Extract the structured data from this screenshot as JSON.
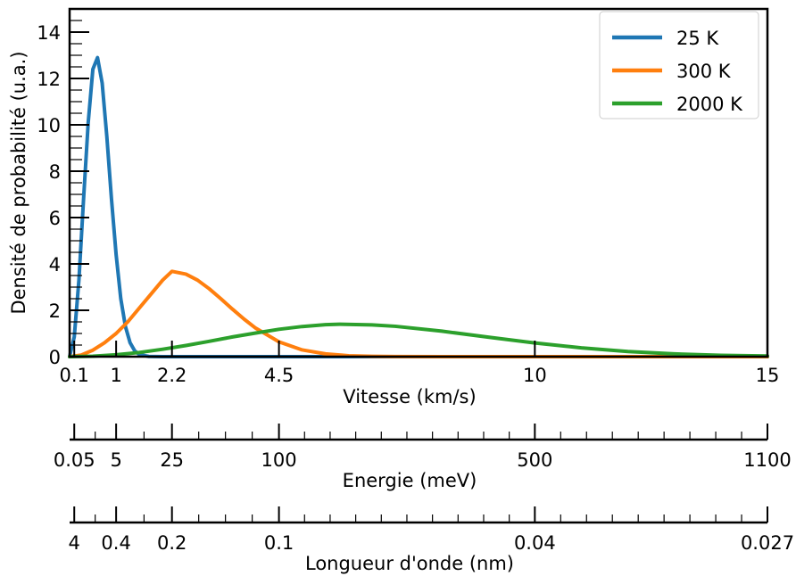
{
  "chart_data": {
    "type": "line",
    "xlabel": "Vitesse (km/s)",
    "ylabel": "Densité de probabilité (u.a.)",
    "xlim": [
      0,
      15
    ],
    "ylim": [
      0,
      15
    ],
    "xticks": [
      0.1,
      1,
      2.2,
      4.5,
      10,
      15
    ],
    "xtick_labels": [
      "0.1",
      "1",
      "2.2",
      "4.5",
      "10",
      "15"
    ],
    "yticks": [
      0,
      2,
      4,
      6,
      8,
      10,
      12,
      14
    ],
    "ytick_labels": [
      "0",
      "2",
      "4",
      "6",
      "8",
      "10",
      "12",
      "14"
    ],
    "legend": "top-right",
    "grid": false,
    "series": [
      {
        "name": "25 K",
        "color": "#1f77b4",
        "x": [
          0,
          0.1,
          0.2,
          0.3,
          0.4,
          0.5,
          0.6,
          0.7,
          0.8,
          0.9,
          1.0,
          1.1,
          1.2,
          1.3,
          1.4,
          1.5,
          1.7,
          2.0,
          15
        ],
        "values": [
          0,
          0.85,
          3.3,
          6.8,
          10.1,
          12.4,
          12.9,
          11.8,
          9.5,
          6.8,
          4.4,
          2.5,
          1.3,
          0.6,
          0.25,
          0.09,
          0.01,
          0,
          0
        ]
      },
      {
        "name": "300 K",
        "color": "#ff7f0e",
        "x": [
          0,
          0.25,
          0.5,
          0.75,
          1.0,
          1.25,
          1.5,
          1.75,
          2.0,
          2.2,
          2.5,
          2.75,
          3.0,
          3.25,
          3.5,
          3.75,
          4.0,
          4.5,
          5.0,
          5.5,
          6.0,
          6.5,
          7.0,
          8.0,
          9.0,
          10,
          15
        ],
        "values": [
          0,
          0.07,
          0.28,
          0.6,
          1.0,
          1.5,
          2.1,
          2.7,
          3.3,
          3.68,
          3.56,
          3.3,
          2.93,
          2.5,
          2.05,
          1.62,
          1.23,
          0.64,
          0.29,
          0.12,
          0.04,
          0.013,
          0.004,
          0,
          0,
          0,
          0
        ]
      },
      {
        "name": "2000 K",
        "color": "#2ca02c",
        "x": [
          0,
          0.5,
          1.0,
          1.5,
          2.0,
          2.5,
          3.0,
          3.5,
          4.0,
          4.5,
          5.0,
          5.5,
          5.8,
          6.5,
          7.0,
          8.0,
          9.0,
          10.0,
          11.0,
          12.0,
          13.0,
          14.0,
          15.0
        ],
        "values": [
          0,
          0.02,
          0.08,
          0.18,
          0.32,
          0.48,
          0.66,
          0.85,
          1.02,
          1.18,
          1.3,
          1.38,
          1.4,
          1.37,
          1.31,
          1.1,
          0.84,
          0.59,
          0.38,
          0.22,
          0.12,
          0.06,
          0.03
        ]
      }
    ]
  },
  "secondary_axes": [
    {
      "label": "Energie (meV)",
      "tick_labels": [
        "0.05",
        "5",
        "25",
        "100",
        "500",
        "1100"
      ]
    },
    {
      "label": "Longueur d'onde (nm)",
      "tick_labels": [
        "4",
        "0.4",
        "0.2",
        "0.1",
        "0.04",
        "0.027"
      ]
    }
  ]
}
